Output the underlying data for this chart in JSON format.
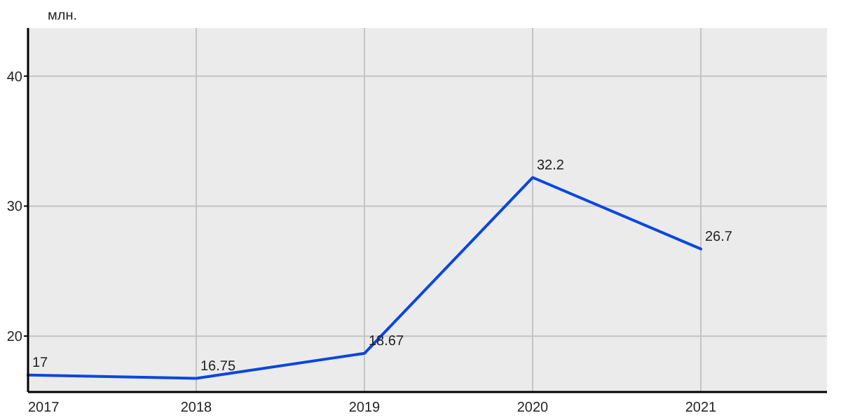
{
  "chart_data": {
    "type": "line",
    "ylabel": "млн.",
    "x": [
      2017,
      2018,
      2019,
      2020,
      2021
    ],
    "series": [
      {
        "color": "#0a46e0",
        "values": [
          17,
          16.75,
          18.67,
          32.2,
          26.7
        ]
      }
    ],
    "xlim": [
      2017,
      2021.75
    ],
    "xticks": [
      2017,
      2018,
      2019,
      2020,
      2021
    ],
    "ylim": [
      15.7,
      43.7
    ],
    "yticks": [
      20,
      30,
      40
    ],
    "grid": true,
    "data_labels": true,
    "marker": "none"
  }
}
